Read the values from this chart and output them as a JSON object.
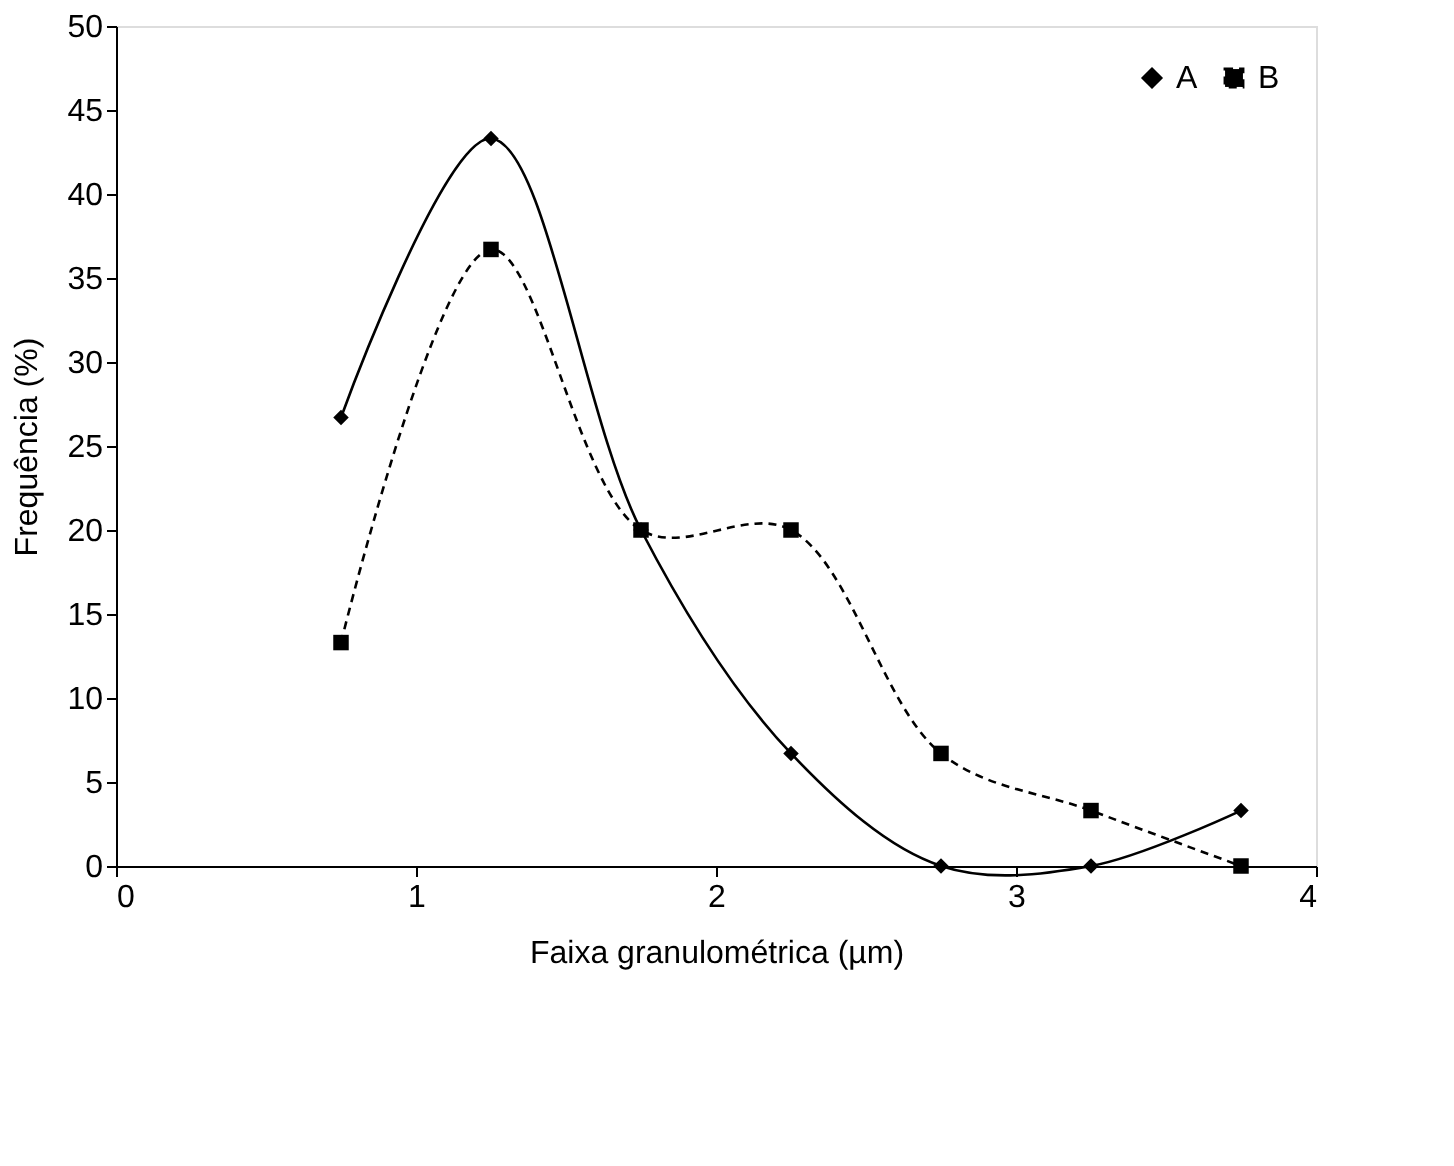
{
  "chart_data": {
    "type": "line",
    "xlabel": "Faixa granulométrica (µm)",
    "ylabel": "Frequência (%)",
    "x": [
      0.75,
      1.25,
      1.75,
      2.25,
      2.75,
      3.25,
      3.75
    ],
    "series": [
      {
        "name": "A",
        "color": "#000000",
        "marker": "diamond",
        "line_style": "solid",
        "values": [
          26.7,
          43.3,
          20.0,
          6.7,
          0.0,
          0.0,
          3.3
        ]
      },
      {
        "name": "B",
        "color": "#000000",
        "marker": "square",
        "line_style": "dashed",
        "values": [
          13.3,
          36.7,
          20.0,
          20.0,
          6.7,
          3.3,
          0.0
        ]
      }
    ],
    "xlim": [
      0,
      4
    ],
    "xticks": [
      0,
      1,
      2,
      3,
      4
    ],
    "ylim": [
      0,
      50
    ],
    "yticks": [
      0,
      5,
      10,
      15,
      20,
      25,
      30,
      35,
      40,
      45,
      50
    ],
    "grid": false,
    "legend": "top right"
  }
}
